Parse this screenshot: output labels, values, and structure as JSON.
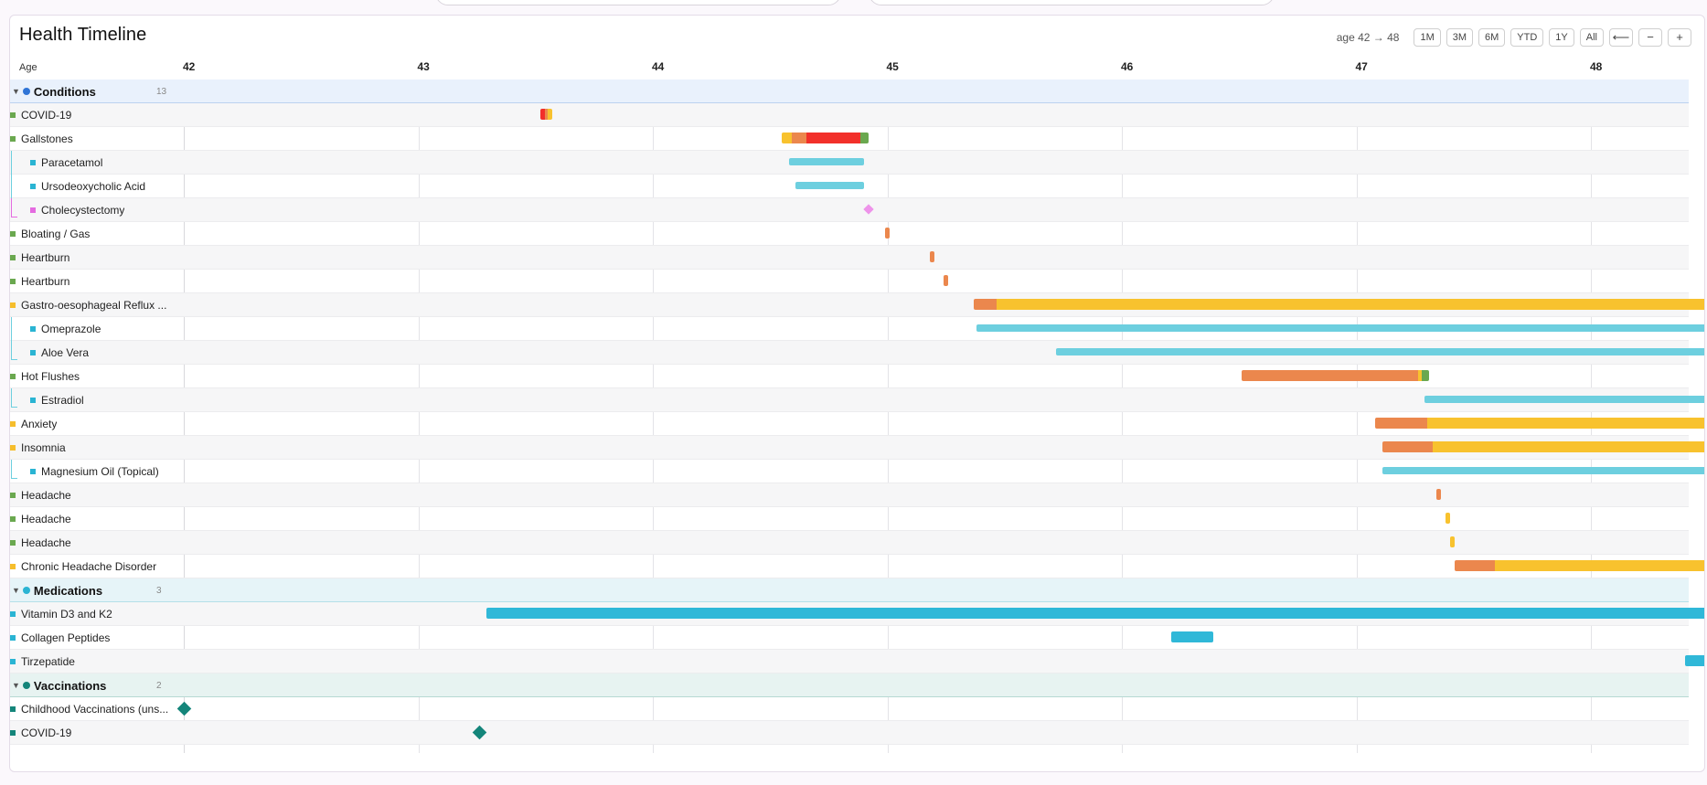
{
  "title": "Health Timeline",
  "range_label": "age 42 → 48",
  "zoom_buttons": [
    "1M",
    "3M",
    "6M",
    "YTD",
    "1Y",
    "All"
  ],
  "nav": {
    "back": "⟵",
    "minus": "−",
    "plus": "+"
  },
  "axis": {
    "caption": "Age",
    "ticks": [
      "42",
      "43",
      "44",
      "45",
      "46",
      "47",
      "48"
    ],
    "min_age": 42.0,
    "max_age": 48.55
  },
  "colors": {
    "condition_green": "#6aa84f",
    "condition_yellow": "#f6be2c",
    "medication": "#2ab4d3",
    "medication_light": "#6dcfdf",
    "procedure": "#e46be0",
    "vaccine": "#14857a",
    "orange": "#eb874d",
    "red": "#f2302a",
    "gold": "#f8c22e"
  },
  "groups": [
    {
      "label": "Conditions",
      "count": "13",
      "style": "blue",
      "dot": "#2f74d6",
      "rows": [
        {
          "label": "COVID-19",
          "mark": "#6aa84f",
          "level": 0,
          "bars": [
            {
              "start": 43.52,
              "end": 43.57,
              "segments": [
                [
                  "#f2302a",
                  0.4
                ],
                [
                  "#eb874d",
                  0.2
                ],
                [
                  "#f8c22e",
                  0.4
                ]
              ]
            }
          ]
        },
        {
          "label": "Gallstones",
          "mark": "#6aa84f",
          "level": 0,
          "bars": [
            {
              "start": 44.55,
              "end": 44.92,
              "segments": [
                [
                  "#f8c22e",
                  0.12
                ],
                [
                  "#eb874d",
                  0.16
                ],
                [
                  "#f2302a",
                  0.63
                ],
                [
                  "#6aa84f",
                  0.09
                ]
              ]
            }
          ]
        },
        {
          "label": "Paracetamol",
          "mark": "#2ab4d3",
          "level": 1,
          "tree": "#6dcfdf",
          "bars": [
            {
              "start": 44.58,
              "end": 44.9,
              "color": "#6dcfdf",
              "thin": true
            }
          ]
        },
        {
          "label": "Ursodeoxycholic Acid",
          "mark": "#2ab4d3",
          "level": 1,
          "tree": "#6dcfdf",
          "bars": [
            {
              "start": 44.61,
              "end": 44.9,
              "color": "#6dcfdf",
              "thin": true
            }
          ]
        },
        {
          "label": "Cholecystectomy",
          "mark": "#e46be0",
          "level": 1,
          "tree": "#e46be0",
          "tree_end": true,
          "diamonds": [
            {
              "at": 44.92,
              "color": "#ee93ea",
              "size": 8
            }
          ]
        },
        {
          "label": "Bloating / Gas",
          "mark": "#6aa84f",
          "level": 0,
          "bars": [
            {
              "start": 44.99,
              "end": 45.01,
              "color": "#eb874d"
            }
          ]
        },
        {
          "label": "Heartburn",
          "mark": "#6aa84f",
          "level": 0,
          "bars": [
            {
              "start": 45.18,
              "end": 45.2,
              "color": "#eb874d"
            }
          ]
        },
        {
          "label": "Heartburn",
          "mark": "#6aa84f",
          "level": 0,
          "bars": [
            {
              "start": 45.24,
              "end": 45.26,
              "color": "#eb874d"
            }
          ]
        },
        {
          "label": "Gastro-oesophageal Reflux ...",
          "mark": "#f6be2c",
          "level": 0,
          "bars": [
            {
              "start": 45.37,
              "end": 48.55,
              "segments": [
                [
                  "#eb874d",
                  0.03
                ],
                [
                  "#f8c22e",
                  0.97
                ]
              ]
            }
          ]
        },
        {
          "label": "Omeprazole",
          "mark": "#2ab4d3",
          "level": 1,
          "tree": "#6dcfdf",
          "bars": [
            {
              "start": 45.38,
              "end": 48.55,
              "color": "#6dcfdf",
              "thin": true
            }
          ]
        },
        {
          "label": "Aloe Vera",
          "mark": "#2ab4d3",
          "level": 1,
          "tree": "#6dcfdf",
          "tree_end": true,
          "bars": [
            {
              "start": 45.72,
              "end": 48.55,
              "color": "#6dcfdf",
              "thin": true
            }
          ]
        },
        {
          "label": "Hot Flushes",
          "mark": "#6aa84f",
          "level": 0,
          "bars": [
            {
              "start": 46.51,
              "end": 47.31,
              "segments": [
                [
                  "#eb874d",
                  0.94
                ],
                [
                  "#f8c22e",
                  0.02
                ],
                [
                  "#6aa84f",
                  0.04
                ]
              ]
            }
          ]
        },
        {
          "label": "Estradiol",
          "mark": "#2ab4d3",
          "level": 1,
          "tree": "#6dcfdf",
          "tree_end": true,
          "bars": [
            {
              "start": 47.29,
              "end": 48.55,
              "color": "#6dcfdf",
              "thin": true
            }
          ]
        },
        {
          "label": "Anxiety",
          "mark": "#f6be2c",
          "level": 0,
          "bars": [
            {
              "start": 47.08,
              "end": 48.55,
              "segments": [
                [
                  "#eb874d",
                  0.15
                ],
                [
                  "#f8c22e",
                  0.85
                ]
              ]
            }
          ]
        },
        {
          "label": "Insomnia",
          "mark": "#f6be2c",
          "level": 0,
          "bars": [
            {
              "start": 47.11,
              "end": 48.55,
              "segments": [
                [
                  "#eb874d",
                  0.15
                ],
                [
                  "#f8c22e",
                  0.85
                ]
              ]
            }
          ]
        },
        {
          "label": "Magnesium Oil (Topical)",
          "mark": "#2ab4d3",
          "level": 1,
          "tree": "#6dcfdf",
          "tree_end": true,
          "bars": [
            {
              "start": 47.11,
              "end": 48.55,
              "color": "#6dcfdf",
              "thin": true
            }
          ]
        },
        {
          "label": "Headache",
          "mark": "#6aa84f",
          "level": 0,
          "bars": [
            {
              "start": 47.34,
              "end": 47.36,
              "color": "#eb874d"
            }
          ]
        },
        {
          "label": "Headache",
          "mark": "#6aa84f",
          "level": 0,
          "bars": [
            {
              "start": 47.38,
              "end": 47.4,
              "color": "#f8c22e"
            }
          ]
        },
        {
          "label": "Headache",
          "mark": "#6aa84f",
          "level": 0,
          "bars": [
            {
              "start": 47.4,
              "end": 47.42,
              "color": "#f8c22e"
            }
          ]
        },
        {
          "label": "Chronic Headache Disorder",
          "mark": "#f6be2c",
          "level": 0,
          "bars": [
            {
              "start": 47.42,
              "end": 48.55,
              "segments": [
                [
                  "#eb874d",
                  0.15
                ],
                [
                  "#f8c22e",
                  0.85
                ]
              ]
            }
          ]
        }
      ]
    },
    {
      "label": "Medications",
      "count": "3",
      "style": "cyan",
      "dot": "#2ab4d3",
      "rows": [
        {
          "label": "Vitamin D3 and K2",
          "mark": "#2ab4d3",
          "level": 0,
          "bars": [
            {
              "start": 43.29,
              "end": 48.55,
              "color": "#30b8d8"
            }
          ]
        },
        {
          "label": "Collagen Peptides",
          "mark": "#2ab4d3",
          "level": 0,
          "bars": [
            {
              "start": 46.21,
              "end": 46.39,
              "color": "#30b8d8"
            }
          ]
        },
        {
          "label": "Tirzepatide",
          "mark": "#2ab4d3",
          "level": 0,
          "bars": [
            {
              "start": 48.4,
              "end": 48.55,
              "color": "#30b8d8"
            }
          ]
        }
      ]
    },
    {
      "label": "Vaccinations",
      "count": "2",
      "style": "teal",
      "dot": "#14857a",
      "rows": [
        {
          "label": "Childhood Vaccinations (uns...",
          "mark": "#14857a",
          "level": 0,
          "diamonds": [
            {
              "at": 42.0,
              "color": "#14857a",
              "size": 11
            }
          ]
        },
        {
          "label": "COVID-19",
          "mark": "#14857a",
          "level": 0,
          "diamonds": [
            {
              "at": 43.26,
              "color": "#14857a",
              "size": 11
            }
          ]
        }
      ]
    }
  ]
}
